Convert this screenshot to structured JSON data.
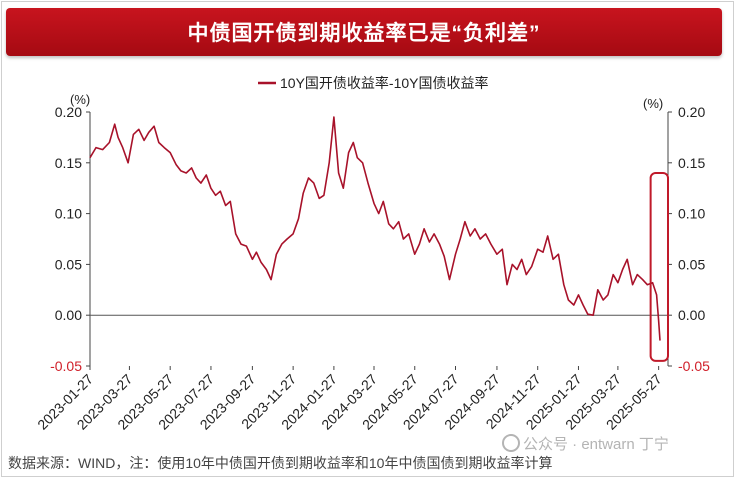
{
  "title": "中债国开债到期收益率已是“负利差”",
  "source_note": "数据来源：WIND，注：使用10年中债国开债到期收益率和10年中债国债到期收益率计算",
  "watermark_text": "公众号 · entwarn 丁宁",
  "colors": {
    "line": "#a8122a",
    "banner": "#c0101a",
    "highlight": "#c01a2a",
    "negative_tick": "#d0202a"
  },
  "chart_data": {
    "type": "line",
    "legend": "10Y国开债收益率-10Y国债收益率",
    "legend_position": "top-center",
    "left_unit": "(%)",
    "right_unit": "(%)",
    "ylim": [
      -0.05,
      0.2
    ],
    "yticks": [
      -0.05,
      0.0,
      0.05,
      0.1,
      0.15,
      0.2
    ],
    "ytick_labels": [
      "-0.05",
      "0.00",
      "0.05",
      "0.10",
      "0.15",
      "0.20"
    ],
    "xlim": [
      "2023-01-27",
      "2025-06-10"
    ],
    "xticks": [
      "2023-01-27",
      "2023-03-27",
      "2023-05-27",
      "2023-07-27",
      "2023-09-27",
      "2023-11-27",
      "2024-01-27",
      "2024-03-27",
      "2024-05-27",
      "2024-07-27",
      "2024-09-27",
      "2024-11-27",
      "2025-01-27",
      "2025-03-27",
      "2025-05-27"
    ],
    "grid": false,
    "highlight_box": {
      "x_range": [
        "2025-05-15",
        "2025-06-10"
      ],
      "y_range": [
        -0.045,
        0.14
      ]
    },
    "series": [
      {
        "name": "10Y国开债收益率-10Y国债收益率",
        "x": [
          "2023-01-27",
          "2023-02-05",
          "2023-02-15",
          "2023-02-25",
          "2023-03-05",
          "2023-03-10",
          "2023-03-17",
          "2023-03-25",
          "2023-04-02",
          "2023-04-10",
          "2023-04-18",
          "2023-04-25",
          "2023-05-03",
          "2023-05-10",
          "2023-05-18",
          "2023-05-27",
          "2023-06-05",
          "2023-06-12",
          "2023-06-20",
          "2023-06-28",
          "2023-07-05",
          "2023-07-12",
          "2023-07-20",
          "2023-07-27",
          "2023-08-03",
          "2023-08-10",
          "2023-08-18",
          "2023-08-25",
          "2023-09-02",
          "2023-09-10",
          "2023-09-18",
          "2023-09-27",
          "2023-10-03",
          "2023-10-10",
          "2023-10-18",
          "2023-10-25",
          "2023-11-02",
          "2023-11-10",
          "2023-11-18",
          "2023-11-27",
          "2023-12-05",
          "2023-12-12",
          "2023-12-20",
          "2023-12-28",
          "2024-01-05",
          "2024-01-12",
          "2024-01-20",
          "2024-01-27",
          "2024-02-03",
          "2024-02-10",
          "2024-02-18",
          "2024-02-25",
          "2024-03-02",
          "2024-03-10",
          "2024-03-18",
          "2024-03-27",
          "2024-04-03",
          "2024-04-10",
          "2024-04-18",
          "2024-04-25",
          "2024-05-03",
          "2024-05-10",
          "2024-05-18",
          "2024-05-27",
          "2024-06-03",
          "2024-06-10",
          "2024-06-18",
          "2024-06-25",
          "2024-07-03",
          "2024-07-10",
          "2024-07-18",
          "2024-07-27",
          "2024-08-03",
          "2024-08-10",
          "2024-08-18",
          "2024-08-25",
          "2024-09-02",
          "2024-09-10",
          "2024-09-18",
          "2024-09-27",
          "2024-10-05",
          "2024-10-12",
          "2024-10-20",
          "2024-10-27",
          "2024-11-03",
          "2024-11-10",
          "2024-11-18",
          "2024-11-27",
          "2024-12-05",
          "2024-12-12",
          "2024-12-20",
          "2024-12-28",
          "2025-01-05",
          "2025-01-12",
          "2025-01-20",
          "2025-01-27",
          "2025-02-03",
          "2025-02-10",
          "2025-02-18",
          "2025-02-25",
          "2025-03-05",
          "2025-03-12",
          "2025-03-20",
          "2025-03-27",
          "2025-04-03",
          "2025-04-10",
          "2025-04-18",
          "2025-04-25",
          "2025-05-03",
          "2025-05-10",
          "2025-05-18",
          "2025-05-24",
          "2025-05-27",
          "2025-05-29"
        ],
        "values": [
          0.155,
          0.165,
          0.163,
          0.17,
          0.188,
          0.175,
          0.165,
          0.15,
          0.178,
          0.183,
          0.172,
          0.18,
          0.186,
          0.17,
          0.165,
          0.16,
          0.148,
          0.142,
          0.14,
          0.145,
          0.135,
          0.13,
          0.138,
          0.125,
          0.118,
          0.122,
          0.108,
          0.112,
          0.08,
          0.07,
          0.068,
          0.055,
          0.062,
          0.052,
          0.045,
          0.035,
          0.06,
          0.07,
          0.075,
          0.08,
          0.095,
          0.12,
          0.135,
          0.13,
          0.115,
          0.118,
          0.15,
          0.195,
          0.14,
          0.125,
          0.16,
          0.17,
          0.155,
          0.15,
          0.13,
          0.11,
          0.1,
          0.112,
          0.09,
          0.085,
          0.092,
          0.075,
          0.08,
          0.06,
          0.07,
          0.085,
          0.072,
          0.08,
          0.07,
          0.058,
          0.035,
          0.06,
          0.075,
          0.092,
          0.078,
          0.085,
          0.075,
          0.08,
          0.07,
          0.06,
          0.065,
          0.03,
          0.05,
          0.045,
          0.055,
          0.04,
          0.048,
          0.065,
          0.062,
          0.078,
          0.055,
          0.06,
          0.03,
          0.015,
          0.01,
          0.02,
          0.01,
          0.001,
          0.0,
          0.025,
          0.015,
          0.02,
          0.04,
          0.032,
          0.045,
          0.055,
          0.03,
          0.04,
          0.035,
          0.03,
          0.032,
          0.02,
          -0.005,
          -0.025
        ]
      }
    ]
  }
}
